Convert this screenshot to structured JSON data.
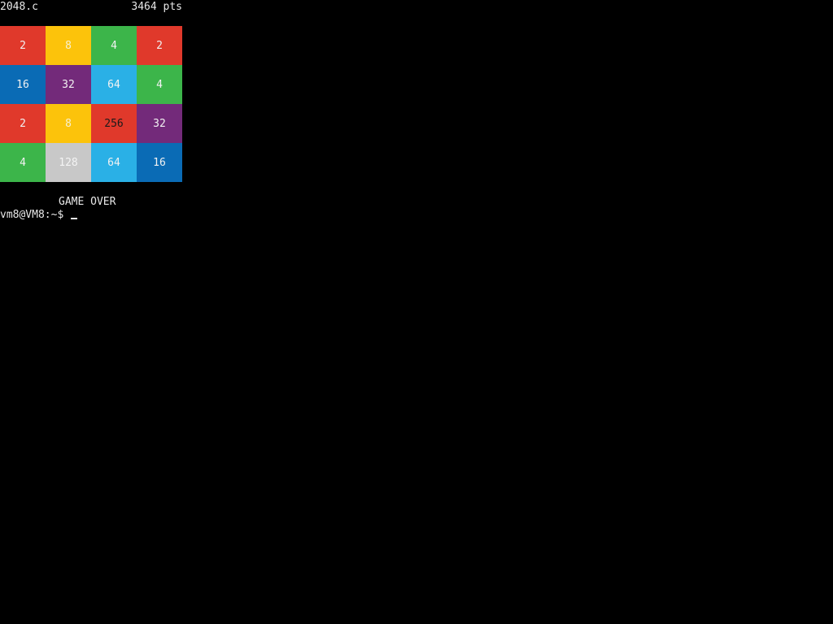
{
  "header": {
    "title": "2048.c",
    "score": "3464 pts"
  },
  "board": [
    [
      "2",
      "8",
      "4",
      "2"
    ],
    [
      "16",
      "32",
      "64",
      "4"
    ],
    [
      "2",
      "8",
      "256",
      "32"
    ],
    [
      "4",
      "128",
      "64",
      "16"
    ]
  ],
  "tile_colors": {
    "2": {
      "bg": "#e0392b",
      "fg": "#f2f2f2"
    },
    "4": {
      "bg": "#3cb54a",
      "fg": "#f2f2f2"
    },
    "8": {
      "bg": "#fcc30b",
      "fg": "#f7f0d0"
    },
    "16": {
      "bg": "#0a6bb5",
      "fg": "#f2f2f2"
    },
    "32": {
      "bg": "#732a7a",
      "fg": "#f2f2f2"
    },
    "64": {
      "bg": "#2ab0e6",
      "fg": "#f2f2f2"
    },
    "128": {
      "bg": "#c8c8c8",
      "fg": "#f4f4f4"
    },
    "256": {
      "bg": "#e0392b",
      "fg": "#1a1a1a"
    }
  },
  "status": "GAME OVER",
  "prompt": "vm8@VM8:~$ "
}
